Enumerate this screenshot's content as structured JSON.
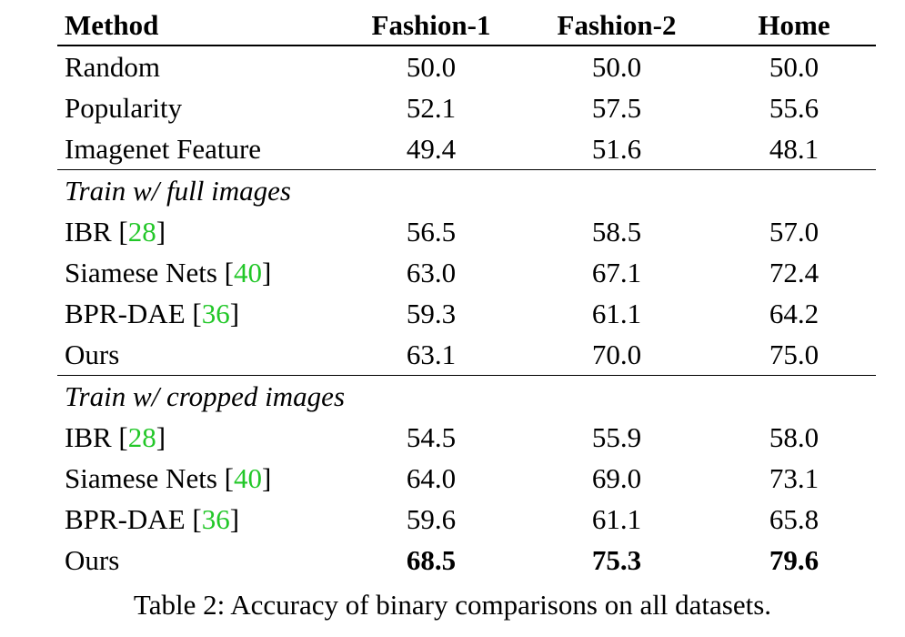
{
  "table": {
    "headers": [
      "Method",
      "Fashion-1",
      "Fashion-2",
      "Home"
    ],
    "baselines": [
      {
        "method": "Random",
        "values": [
          "50.0",
          "50.0",
          "50.0"
        ]
      },
      {
        "method": "Popularity",
        "values": [
          "52.1",
          "57.5",
          "55.6"
        ]
      },
      {
        "method": "Imagenet Feature",
        "values": [
          "49.4",
          "51.6",
          "48.1"
        ]
      }
    ],
    "group_full": {
      "title": "Train w/ full images",
      "rows": [
        {
          "method": "IBR [",
          "cite": "28",
          "close": "]",
          "values": [
            "56.5",
            "58.5",
            "57.0"
          ]
        },
        {
          "method": "Siamese Nets [",
          "cite": "40",
          "close": "]",
          "values": [
            "63.0",
            "67.1",
            "72.4"
          ]
        },
        {
          "method": "BPR-DAE [",
          "cite": "36",
          "close": "]",
          "values": [
            "59.3",
            "61.1",
            "64.2"
          ]
        },
        {
          "method": "Ours",
          "values": [
            "63.1",
            "70.0",
            "75.0"
          ]
        }
      ]
    },
    "group_cropped": {
      "title": "Train w/ cropped images",
      "rows": [
        {
          "method": "IBR [",
          "cite": "28",
          "close": "]",
          "values": [
            "54.5",
            "55.9",
            "58.0"
          ]
        },
        {
          "method": "Siamese Nets [",
          "cite": "40",
          "close": "]",
          "values": [
            "64.0",
            "69.0",
            "73.1"
          ]
        },
        {
          "method": "BPR-DAE [",
          "cite": "36",
          "close": "]",
          "values": [
            "59.6",
            "61.1",
            "65.8"
          ]
        },
        {
          "method": "Ours",
          "values": [
            "68.5",
            "75.3",
            "79.6"
          ]
        }
      ]
    }
  },
  "caption": "Table 2: Accuracy of binary comparisons on all datasets.",
  "colors": {
    "citation": "#22c728",
    "text": "#000000",
    "background": "#ffffff"
  }
}
